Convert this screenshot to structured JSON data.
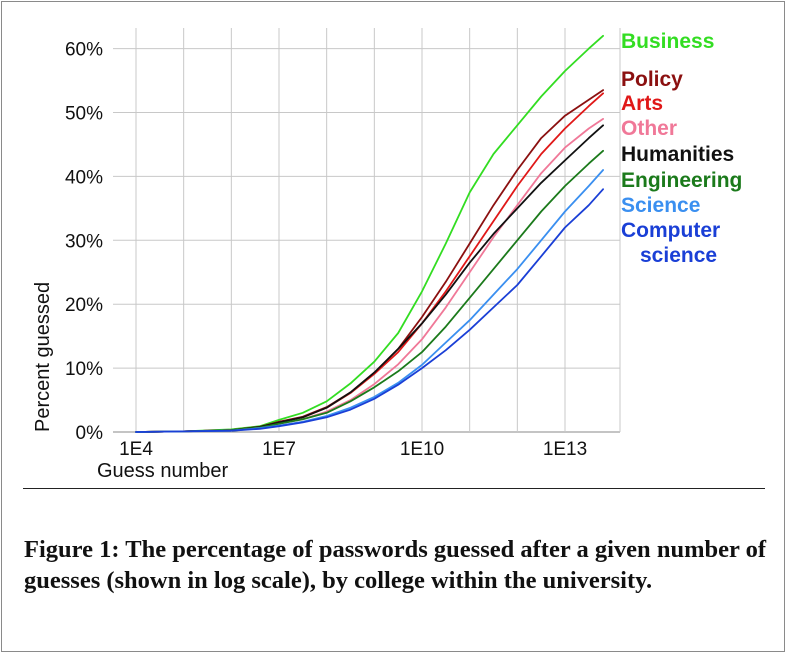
{
  "chart_data": {
    "type": "line",
    "title": "",
    "xlabel": "Guess number",
    "ylabel": "Percent guessed",
    "x_scale": "log10",
    "x_ticks": [
      4,
      7,
      10,
      13
    ],
    "x_tick_labels": [
      "1E4",
      "1E7",
      "1E10",
      "1E13"
    ],
    "y_ticks": [
      0,
      10,
      20,
      30,
      40,
      50,
      60
    ],
    "y_tick_labels": [
      "0%",
      "10%",
      "20%",
      "30%",
      "40%",
      "50%",
      "60%"
    ],
    "xlim": [
      3,
      13.9
    ],
    "ylim": [
      0,
      62
    ],
    "grid": true,
    "legend_placement": "right, labels placed at line ends",
    "series": [
      {
        "name": "Business",
        "color": "#33dd22",
        "x_log10": [
          4,
          5,
          6,
          6.6,
          7,
          7.5,
          8,
          8.5,
          9,
          9.5,
          10,
          10.5,
          11,
          11.5,
          12,
          12.5,
          13,
          13.5,
          13.8
        ],
        "y": [
          0,
          0.1,
          0.4,
          0.9,
          1.9,
          3.0,
          4.8,
          7.6,
          11.0,
          15.5,
          22.0,
          29.5,
          37.5,
          43.5,
          48.0,
          52.5,
          56.5,
          60.0,
          62.0
        ]
      },
      {
        "name": "Policy",
        "color": "#8b1010",
        "x_log10": [
          4,
          5,
          6,
          6.6,
          7,
          7.5,
          8,
          8.5,
          9,
          9.5,
          10,
          10.5,
          11,
          11.5,
          12,
          12.5,
          13,
          13.5,
          13.8
        ],
        "y": [
          0,
          0.1,
          0.3,
          0.8,
          1.6,
          2.4,
          3.9,
          6.2,
          9.3,
          13.0,
          18.0,
          23.5,
          29.5,
          35.5,
          41.0,
          46.0,
          49.5,
          52.0,
          53.5
        ]
      },
      {
        "name": "Arts",
        "color": "#e01818",
        "x_log10": [
          4,
          5,
          6,
          6.6,
          7,
          7.5,
          8,
          8.5,
          9,
          9.5,
          10,
          10.5,
          11,
          11.5,
          12,
          12.5,
          13,
          13.5,
          13.8
        ],
        "y": [
          0,
          0.1,
          0.3,
          0.8,
          1.5,
          2.3,
          3.8,
          6.1,
          9.1,
          12.5,
          17.0,
          22.0,
          27.5,
          33.0,
          38.5,
          43.5,
          47.5,
          51.0,
          53.0
        ]
      },
      {
        "name": "Other",
        "color": "#f07898",
        "x_log10": [
          4,
          5,
          6,
          6.6,
          7,
          7.5,
          8,
          8.5,
          9,
          9.5,
          10,
          10.5,
          11,
          11.5,
          12,
          12.5,
          13,
          13.5,
          13.8
        ],
        "y": [
          0,
          0.1,
          0.3,
          0.7,
          1.3,
          2.0,
          3.2,
          5.0,
          7.5,
          10.6,
          14.5,
          19.5,
          25.0,
          30.5,
          35.5,
          40.5,
          44.5,
          47.5,
          49.0
        ]
      },
      {
        "name": "Humanities",
        "color": "#111111",
        "x_log10": [
          4,
          5,
          6,
          6.6,
          7,
          7.5,
          8,
          8.5,
          9,
          9.5,
          10,
          10.5,
          11,
          11.5,
          12,
          12.5,
          13,
          13.5,
          13.8
        ],
        "y": [
          0,
          0.1,
          0.3,
          0.8,
          1.5,
          2.3,
          3.8,
          6.2,
          9.3,
          13.0,
          17.0,
          21.5,
          26.5,
          31.0,
          35.0,
          39.0,
          42.5,
          46.0,
          48.0
        ]
      },
      {
        "name": "Engineering",
        "color": "#1b7a1b",
        "x_log10": [
          4,
          5,
          6,
          6.6,
          7,
          7.5,
          8,
          8.5,
          9,
          9.5,
          10,
          10.5,
          11,
          11.5,
          12,
          12.5,
          13,
          13.5,
          13.8
        ],
        "y": [
          0,
          0.1,
          0.3,
          0.7,
          1.3,
          2.0,
          3.0,
          4.8,
          7.0,
          9.5,
          12.5,
          16.5,
          21.0,
          25.5,
          30.0,
          34.5,
          38.5,
          42.0,
          44.0
        ]
      },
      {
        "name": "Science",
        "color": "#3a8ff0",
        "x_log10": [
          4,
          5,
          6,
          6.6,
          7,
          7.5,
          8,
          8.5,
          9,
          9.5,
          10,
          10.5,
          11,
          11.5,
          12,
          12.5,
          13,
          13.5,
          13.8
        ],
        "y": [
          0,
          0.1,
          0.2,
          0.6,
          1.0,
          1.6,
          2.5,
          3.8,
          5.5,
          7.7,
          10.5,
          14.0,
          17.5,
          21.5,
          25.5,
          30.0,
          34.5,
          38.5,
          41.0
        ]
      },
      {
        "name": "Computer science",
        "color": "#1a3fd6",
        "x_log10": [
          4,
          5,
          6,
          6.6,
          7,
          7.5,
          8,
          8.5,
          9,
          9.5,
          10,
          10.5,
          11,
          11.5,
          12,
          12.5,
          13,
          13.5,
          13.8
        ],
        "y": [
          0,
          0.1,
          0.2,
          0.5,
          0.9,
          1.5,
          2.3,
          3.5,
          5.2,
          7.4,
          10.0,
          12.8,
          16.0,
          19.5,
          23.0,
          27.5,
          32.0,
          35.5,
          38.0
        ]
      }
    ],
    "legend_labels": [
      {
        "lines": [
          "Business"
        ],
        "color": "#33dd22"
      },
      {
        "lines": [
          "Policy"
        ],
        "color": "#8b1010"
      },
      {
        "lines": [
          "Arts"
        ],
        "color": "#e01818"
      },
      {
        "lines": [
          "Other"
        ],
        "color": "#f07898"
      },
      {
        "lines": [
          "Humanities"
        ],
        "color": "#111111"
      },
      {
        "lines": [
          "Engineering"
        ],
        "color": "#1b7a1b"
      },
      {
        "lines": [
          "Science"
        ],
        "color": "#3a8ff0"
      },
      {
        "lines": [
          "Computer",
          "science"
        ],
        "color": "#1a3fd6"
      }
    ]
  },
  "caption": "Figure 1: The percentage of passwords guessed after a given number of guesses (shown in log scale), by college within the university."
}
